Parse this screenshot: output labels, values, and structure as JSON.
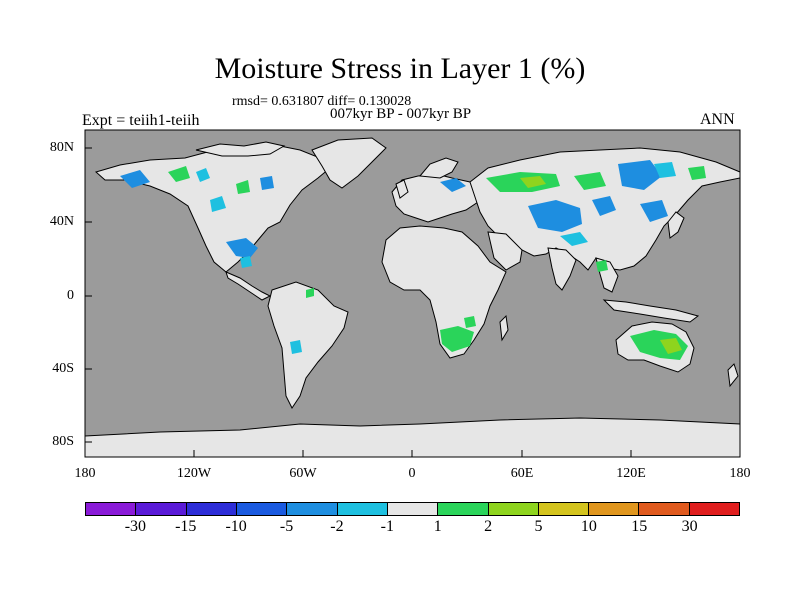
{
  "title": "Moisture Stress in Layer 1 (%)",
  "stats": "rmsd= 0.631807 diff= 0.130028",
  "period": "007kyr BP - 007kyr BP",
  "expt": "Expt = teiih1-teiih",
  "season": "ANN",
  "colors": {
    "ocean": "#9b9b9b",
    "land": "#e6e6e6",
    "coast": "#000000"
  },
  "y_ticks": [
    "80N",
    "40N",
    "0",
    "40S",
    "80S"
  ],
  "x_ticks": [
    "180",
    "120W",
    "60W",
    "0",
    "60E",
    "120E",
    "180"
  ],
  "colorbar": {
    "colors": [
      "#8a1ad8",
      "#5a1ad8",
      "#2d2dd8",
      "#1a5ae0",
      "#1e8ee0",
      "#1ec0e0",
      "#e6e6e6",
      "#2ad45a",
      "#8ed41e",
      "#d4c41e",
      "#e0961e",
      "#e05a1e",
      "#e01e1e"
    ],
    "labels": [
      "-30",
      "-15",
      "-10",
      "-5",
      "-2",
      "-1",
      "1",
      "2",
      "5",
      "10",
      "15",
      "30"
    ]
  }
}
